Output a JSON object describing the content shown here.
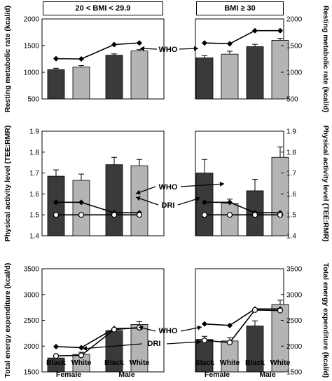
{
  "groups": [
    "20 < BMI < 29.9",
    "BMI ≥ 30"
  ],
  "x_axis": {
    "categories": [
      "Black",
      "White",
      "Black",
      "White"
    ],
    "sex_labels": [
      "Female",
      "Male"
    ]
  },
  "colors": {
    "black_bar": "#3a3a3a",
    "white_bar": "#b4b4b4",
    "line": "#000000"
  },
  "chart_data": [
    {
      "type": "bar",
      "panel": "resting-metabolic-rate",
      "ylabel": "Resting metabolic rate (kcal/d)",
      "ylim": [
        500,
        2000
      ],
      "yticks": [
        500,
        1000,
        1500,
        2000
      ],
      "categories": [
        "Black Female",
        "White Female",
        "Black Male",
        "White Male"
      ],
      "series": [
        {
          "group": "20 < BMI < 29.9",
          "values": [
            1050,
            1100,
            1320,
            1400
          ],
          "errors": [
            25,
            25,
            25,
            25
          ]
        },
        {
          "group": "BMI ≥ 30",
          "values": [
            1270,
            1340,
            1480,
            1600
          ],
          "errors": [
            40,
            55,
            45,
            35
          ]
        }
      ],
      "lines": [
        {
          "name": "WHO",
          "marker": "diamond",
          "values_by_group": [
            [
              1255,
              1250,
              1520,
              1550
            ],
            [
              1550,
              1535,
              1780,
              1780
            ]
          ]
        }
      ]
    },
    {
      "type": "bar",
      "panel": "physical-activity-level",
      "ylabel": "Physical activity level (TEE:RMR)",
      "ylim": [
        1.4,
        1.9
      ],
      "yticks": [
        1.4,
        1.5,
        1.6,
        1.7,
        1.8,
        1.9
      ],
      "categories": [
        "Black Female",
        "White Female",
        "Black Male",
        "White Male"
      ],
      "series": [
        {
          "group": "20 < BMI < 29.9",
          "values": [
            1.685,
            1.665,
            1.74,
            1.735
          ],
          "errors": [
            0.03,
            0.03,
            0.035,
            0.03
          ]
        },
        {
          "group": "BMI ≥ 30",
          "values": [
            1.7,
            1.555,
            1.615,
            1.775
          ],
          "errors": [
            0.065,
            0.02,
            0.055,
            0.05
          ]
        }
      ],
      "lines": [
        {
          "name": "WHO",
          "marker": "diamond",
          "values_by_group": [
            [
              1.56,
              1.56,
              1.51,
              1.51
            ],
            [
              1.56,
              1.56,
              1.51,
              1.51
            ]
          ]
        },
        {
          "name": "DRI",
          "marker": "circle",
          "values_by_group": [
            [
              1.5,
              1.5,
              1.5,
              1.5
            ],
            [
              1.5,
              1.5,
              1.5,
              1.5
            ]
          ]
        }
      ]
    },
    {
      "type": "bar",
      "panel": "total-energy-expenditure",
      "ylabel": "Total energy expenditure (kcal/d)",
      "ylim": [
        1500,
        3500
      ],
      "yticks": [
        1500,
        2000,
        2500,
        3000,
        3500
      ],
      "categories": [
        "Black Female",
        "White Female",
        "Black Male",
        "White Male"
      ],
      "series": [
        {
          "group": "20 < BMI < 29.9",
          "values": [
            1770,
            1840,
            2300,
            2420
          ],
          "errors": [
            30,
            40,
            45,
            55
          ]
        },
        {
          "group": "BMI ≥ 30",
          "values": [
            2130,
            2100,
            2390,
            2810
          ],
          "errors": [
            60,
            60,
            100,
            80
          ]
        }
      ],
      "lines": [
        {
          "name": "WHO",
          "marker": "diamond",
          "values_by_group": [
            [
              1990,
              1970,
              2340,
              2350
            ],
            [
              2430,
              2400,
              2720,
              2720
            ]
          ]
        },
        {
          "name": "DRI",
          "marker": "circle",
          "values_by_group": [
            [
              1810,
              1820,
              2320,
              2360
            ],
            [
              2110,
              2070,
              2700,
              2690
            ]
          ]
        }
      ]
    }
  ]
}
